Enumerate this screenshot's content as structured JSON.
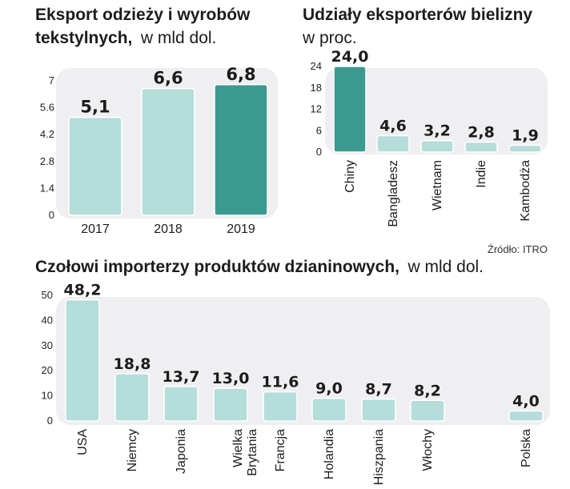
{
  "colors": {
    "bar": "#b5ddd9",
    "bar_highlight": "#3d9a90",
    "bar_outline": "#ffffff",
    "panel_background": "#efeff2",
    "text": "#1c1c1c"
  },
  "source_note": "Źródło: ITRO",
  "chart_data": [
    {
      "id": "export",
      "type": "bar",
      "title_line1": "Eksport odzieży i wyrobów",
      "title_line2": "tekstylnych,",
      "unit": "w mld dol.",
      "categories": [
        "2017",
        "2018",
        "2019"
      ],
      "values": [
        5.1,
        6.6,
        6.8
      ],
      "value_labels": [
        "5,1",
        "6,6",
        "6,8"
      ],
      "highlight_index": 2,
      "yticks": [
        "0",
        "1.4",
        "2.8",
        "4.2",
        "5.6",
        "7"
      ],
      "ylim": [
        0,
        7
      ],
      "xlabel": "",
      "ylabel": ""
    },
    {
      "id": "shares",
      "type": "bar",
      "title_line1": "Udziały eksporterów bielizny",
      "unit": "w proc.",
      "categories": [
        "Chiny",
        "Bangladesz",
        "Wietnam",
        "Indie",
        "Kambodża"
      ],
      "values": [
        24.0,
        4.6,
        3.2,
        2.8,
        1.9
      ],
      "value_labels": [
        "24,0",
        "4,6",
        "3,2",
        "2,8",
        "1,9"
      ],
      "highlight_index": 0,
      "yticks": [
        "0",
        "6",
        "12",
        "18",
        "24"
      ],
      "ylim": [
        0,
        24
      ],
      "xlabel": "",
      "ylabel": ""
    },
    {
      "id": "importers",
      "type": "bar",
      "title_line1": "Czołowi importerzy produktów dzianinowych,",
      "unit": "w mld dol.",
      "categories": [
        "USA",
        "Niemcy",
        "Japonia",
        "Wielka|Brytania",
        "Francja",
        "Holandia",
        "Hiszpania",
        "Włochy",
        "Polska"
      ],
      "values": [
        48.2,
        18.8,
        13.7,
        13.0,
        11.6,
        9.0,
        8.7,
        8.2,
        4.0
      ],
      "value_labels": [
        "48,2",
        "18,8",
        "13,7",
        "13,0",
        "11,6",
        "9,0",
        "8,7",
        "8,2",
        "4,0"
      ],
      "highlight_index": -1,
      "yticks": [
        "0",
        "10",
        "20",
        "30",
        "40",
        "50"
      ],
      "ylim": [
        0,
        50
      ],
      "xlabel": "",
      "ylabel": ""
    }
  ]
}
